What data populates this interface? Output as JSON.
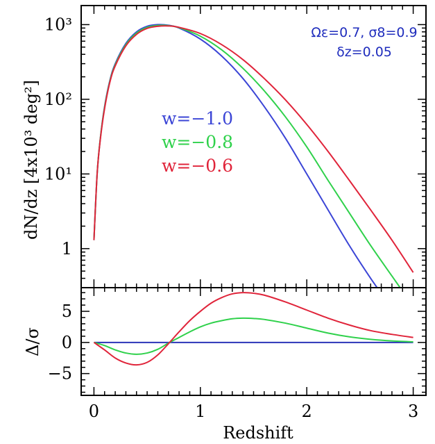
{
  "chart_data": [
    {
      "type": "line",
      "panel": "top",
      "xlabel": "",
      "ylabel": "dN/dz [4x10³ deg²]",
      "yscale": "log",
      "xlim": [
        -0.12,
        3.12
      ],
      "ylim": [
        0.3,
        1800
      ],
      "grid": false,
      "y_ticks": [
        {
          "value": 1,
          "label": "1"
        },
        {
          "value": 10,
          "label": "10¹"
        },
        {
          "value": 100,
          "label": "10²"
        },
        {
          "value": 1000,
          "label": "10³"
        }
      ],
      "annotations": {
        "line1": "Ωε=0.7, σ8=0.9",
        "line2": "δz=0.05",
        "color": "#1f2dbd"
      },
      "legend": [
        {
          "label": "w=−1.0",
          "color": "#3b45d6"
        },
        {
          "label": "w=−0.8",
          "color": "#2fd14b"
        },
        {
          "label": "w=−0.6",
          "color": "#e0243a"
        }
      ],
      "series": [
        {
          "name": "w=−1.0",
          "color": "#3b45d6",
          "x": [
            0.0,
            0.03,
            0.06,
            0.1,
            0.15,
            0.2,
            0.3,
            0.4,
            0.5,
            0.6,
            0.7,
            0.8,
            1.0,
            1.2,
            1.4,
            1.6,
            1.8,
            2.0,
            2.2,
            2.4,
            2.6,
            2.75
          ],
          "y": [
            1.3,
            10,
            30,
            80,
            180,
            300,
            560,
            800,
            950,
            1000,
            980,
            900,
            640,
            380,
            190,
            80,
            30,
            10,
            3.3,
            1.1,
            0.4,
            0.2
          ]
        },
        {
          "name": "w=−0.8",
          "color": "#2fd14b",
          "x": [
            0.0,
            0.03,
            0.06,
            0.1,
            0.15,
            0.2,
            0.3,
            0.4,
            0.5,
            0.6,
            0.7,
            0.8,
            1.0,
            1.2,
            1.4,
            1.6,
            1.8,
            2.0,
            2.2,
            2.4,
            2.6,
            2.8,
            2.9,
            2.97
          ],
          "y": [
            1.3,
            10,
            30,
            78,
            175,
            290,
            540,
            770,
            920,
            975,
            970,
            910,
            700,
            460,
            260,
            130,
            58,
            23,
            8.2,
            3.0,
            1.1,
            0.43,
            0.27,
            0.2
          ]
        },
        {
          "name": "w=−0.6",
          "color": "#e0243a",
          "x": [
            0.0,
            0.03,
            0.06,
            0.1,
            0.15,
            0.2,
            0.3,
            0.4,
            0.5,
            0.6,
            0.7,
            0.8,
            1.0,
            1.2,
            1.4,
            1.6,
            1.8,
            2.0,
            2.2,
            2.4,
            2.6,
            2.8,
            3.0
          ],
          "y": [
            1.3,
            10,
            29,
            75,
            170,
            280,
            520,
            740,
            890,
            950,
            960,
            920,
            760,
            540,
            340,
            190,
            98,
            46,
            20,
            8.2,
            3.3,
            1.3,
            0.48
          ]
        }
      ]
    },
    {
      "type": "line",
      "panel": "bottom",
      "xlabel": "Redshift",
      "ylabel": "Δ/σ",
      "xlim": [
        -0.12,
        3.12
      ],
      "ylim": [
        -8.5,
        8.8
      ],
      "grid": false,
      "x_ticks": [
        {
          "value": 0,
          "label": "0"
        },
        {
          "value": 1,
          "label": "1"
        },
        {
          "value": 2,
          "label": "2"
        },
        {
          "value": 3,
          "label": "3"
        }
      ],
      "y_ticks": [
        {
          "value": -5,
          "label": "−5"
        },
        {
          "value": 0,
          "label": "0"
        },
        {
          "value": 5,
          "label": "5"
        }
      ],
      "series": [
        {
          "name": "w=−1.0",
          "color": "#2b34b8",
          "x": [
            0.0,
            3.0
          ],
          "y": [
            0,
            0
          ]
        },
        {
          "name": "w=−0.8",
          "color": "#2fd14b",
          "x": [
            0.0,
            0.1,
            0.2,
            0.3,
            0.4,
            0.5,
            0.6,
            0.7,
            0.8,
            0.9,
            1.0,
            1.1,
            1.2,
            1.3,
            1.4,
            1.5,
            1.6,
            1.8,
            2.0,
            2.2,
            2.4,
            2.6,
            2.8,
            3.0
          ],
          "y": [
            0,
            -0.5,
            -1.2,
            -1.7,
            -1.9,
            -1.7,
            -1.1,
            -0.1,
            0.8,
            1.7,
            2.5,
            3.1,
            3.5,
            3.8,
            3.9,
            3.85,
            3.7,
            3.1,
            2.3,
            1.5,
            0.9,
            0.5,
            0.25,
            0.1
          ]
        },
        {
          "name": "w=−0.6",
          "color": "#e0243a",
          "x": [
            0.0,
            0.1,
            0.2,
            0.3,
            0.4,
            0.5,
            0.6,
            0.7,
            0.8,
            0.9,
            1.0,
            1.1,
            1.2,
            1.3,
            1.4,
            1.5,
            1.6,
            1.8,
            2.0,
            2.2,
            2.4,
            2.6,
            2.8,
            3.0
          ],
          "y": [
            0,
            -1.2,
            -2.5,
            -3.3,
            -3.6,
            -3.2,
            -2.0,
            -0.2,
            1.7,
            3.5,
            5.0,
            6.3,
            7.2,
            7.8,
            8.0,
            7.9,
            7.6,
            6.5,
            5.2,
            3.9,
            2.8,
            1.9,
            1.3,
            0.8
          ]
        }
      ]
    }
  ]
}
